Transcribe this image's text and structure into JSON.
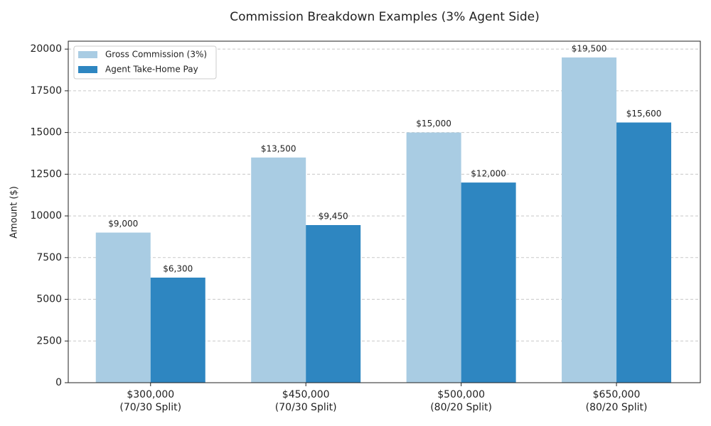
{
  "chart_data": {
    "type": "bar",
    "title": "Commission Breakdown Examples (3% Agent Side)",
    "y_label": "Amount ($)",
    "categories": [
      "$300,000\n(70/30 Split)",
      "$450,000\n(70/30 Split)",
      "$500,000\n(80/20 Split)",
      "$650,000\n(80/20 Split)"
    ],
    "series": [
      {
        "name": "Gross Commission (3%)",
        "color": "#a9cce3",
        "values": [
          9000,
          13500,
          15000,
          19500
        ],
        "value_labels": [
          "$9,000",
          "$13,500",
          "$15,000",
          "$19,500"
        ]
      },
      {
        "name": "Agent Take-Home Pay",
        "color": "#2e86c1",
        "values": [
          6300,
          9450,
          12000,
          15600
        ],
        "value_labels": [
          "$6,300",
          "$9,450",
          "$12,000",
          "$15,600"
        ]
      }
    ],
    "ylim": [
      0,
      20475
    ],
    "yticks": [
      0,
      2500,
      5000,
      7500,
      10000,
      12500,
      15000,
      17500,
      20000
    ],
    "grid": true,
    "legend": "upper-left"
  }
}
